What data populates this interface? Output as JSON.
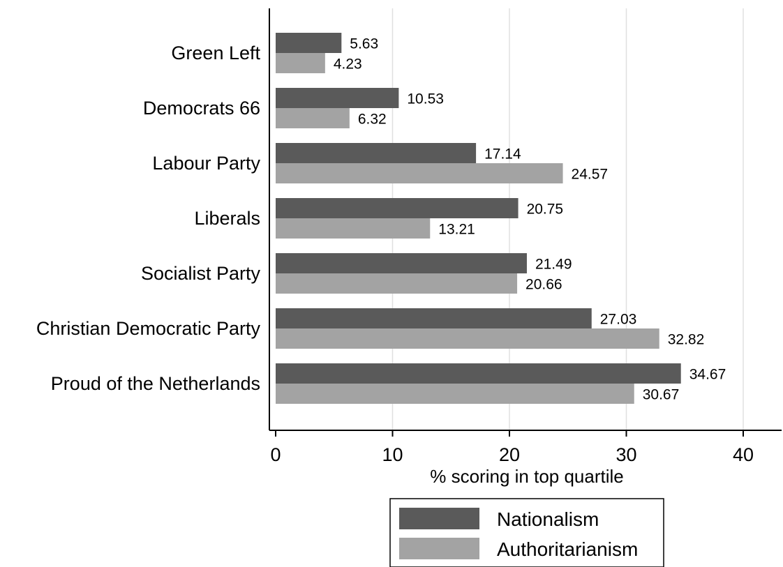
{
  "chart_data": {
    "type": "bar",
    "orientation": "horizontal",
    "categories": [
      "Green Left",
      "Democrats 66",
      "Labour Party",
      "Liberals",
      "Socialist Party",
      "Christian Democratic Party",
      "Proud of the Netherlands"
    ],
    "series": [
      {
        "name": "Nationalism",
        "color": "#5a5a5a",
        "values": [
          5.63,
          10.53,
          17.14,
          20.75,
          21.49,
          27.03,
          34.67
        ],
        "value_labels": [
          "5.63",
          "10.53",
          "17.14",
          "20.75",
          "21.49",
          "27.03",
          "34.67"
        ]
      },
      {
        "name": "Authoritarianism",
        "color": "#a3a3a3",
        "values": [
          4.23,
          6.32,
          24.57,
          13.21,
          20.66,
          32.82,
          30.67
        ],
        "value_labels": [
          "4.23",
          "6.32",
          "24.57",
          "13.21",
          "20.66",
          "32.82",
          "30.67"
        ]
      }
    ],
    "title": "",
    "xlabel": "% scoring in top quartile",
    "ylabel": "",
    "xlim": [
      0,
      43
    ],
    "xticks": [
      0,
      10,
      20,
      30,
      40
    ],
    "xtick_labels": [
      "0",
      "10",
      "20",
      "30",
      "40"
    ],
    "grid": "vertical",
    "grid_color": "#e0e0e0",
    "legend_position": "bottom"
  }
}
